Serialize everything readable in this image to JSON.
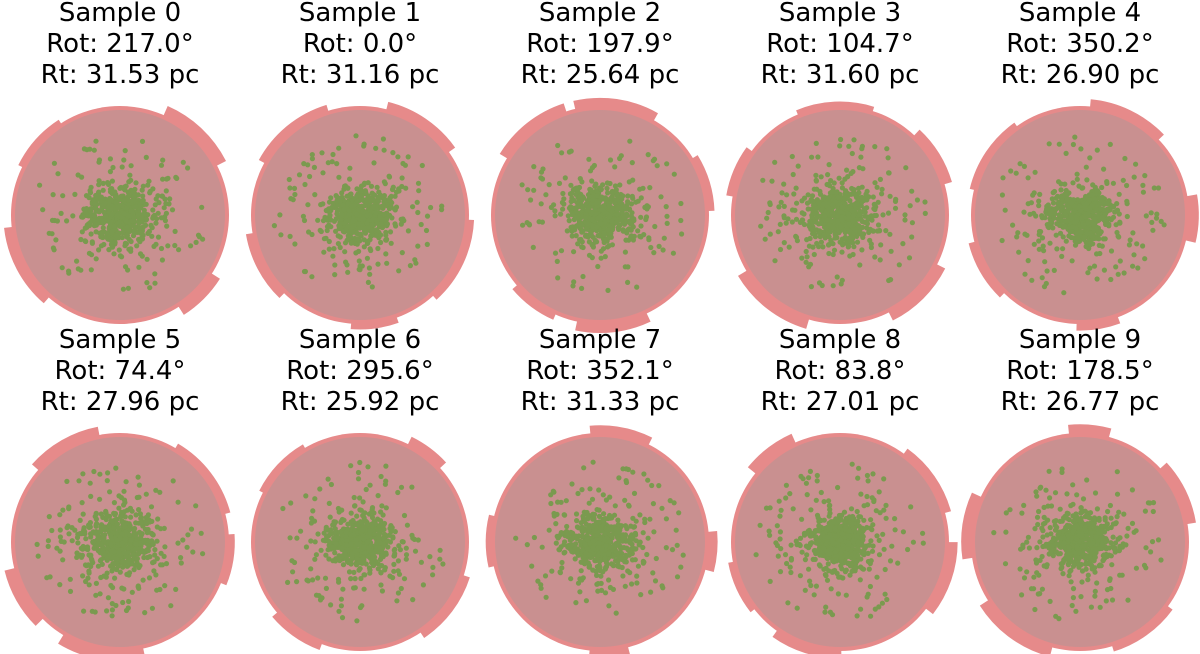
{
  "chart_data": {
    "type": "scatter",
    "layout": {
      "rows": 2,
      "cols": 5
    },
    "colors": {
      "tidal_boundary": "#e68a8a",
      "inner_disk": "#c99090",
      "stars": "#7a9a4f"
    },
    "panels": [
      {
        "title": "Sample 0",
        "rot_label": "Rot: 217.0°",
        "rt_label": "Rt: 31.53 pc",
        "rotation_deg": 217.0,
        "rt_pc": 31.53,
        "n_stars": 600
      },
      {
        "title": "Sample 1",
        "rot_label": "Rot: 0.0°",
        "rt_label": "Rt: 31.16 pc",
        "rotation_deg": 0.0,
        "rt_pc": 31.16,
        "n_stars": 600
      },
      {
        "title": "Sample 2",
        "rot_label": "Rot: 197.9°",
        "rt_label": "Rt: 25.64 pc",
        "rotation_deg": 197.9,
        "rt_pc": 25.64,
        "n_stars": 600
      },
      {
        "title": "Sample 3",
        "rot_label": "Rot: 104.7°",
        "rt_label": "Rt: 31.60 pc",
        "rotation_deg": 104.7,
        "rt_pc": 31.6,
        "n_stars": 600
      },
      {
        "title": "Sample 4",
        "rot_label": "Rot: 350.2°",
        "rt_label": "Rt: 26.90 pc",
        "rotation_deg": 350.2,
        "rt_pc": 26.9,
        "n_stars": 600
      },
      {
        "title": "Sample 5",
        "rot_label": "Rot: 74.4°",
        "rt_label": "Rt: 27.96 pc",
        "rotation_deg": 74.4,
        "rt_pc": 27.96,
        "n_stars": 600
      },
      {
        "title": "Sample 6",
        "rot_label": "Rot: 295.6°",
        "rt_label": "Rt: 25.92 pc",
        "rotation_deg": 295.6,
        "rt_pc": 25.92,
        "n_stars": 600
      },
      {
        "title": "Sample 7",
        "rot_label": "Rot: 352.1°",
        "rt_label": "Rt: 31.33 pc",
        "rotation_deg": 352.1,
        "rt_pc": 31.33,
        "n_stars": 600
      },
      {
        "title": "Sample 8",
        "rot_label": "Rot: 83.8°",
        "rt_label": "Rt: 27.01 pc",
        "rotation_deg": 83.8,
        "rt_pc": 27.01,
        "n_stars": 600
      },
      {
        "title": "Sample 9",
        "rot_label": "Rot: 178.5°",
        "rt_label": "Rt: 26.77 pc",
        "rotation_deg": 178.5,
        "rt_pc": 26.77,
        "n_stars": 600
      }
    ]
  }
}
